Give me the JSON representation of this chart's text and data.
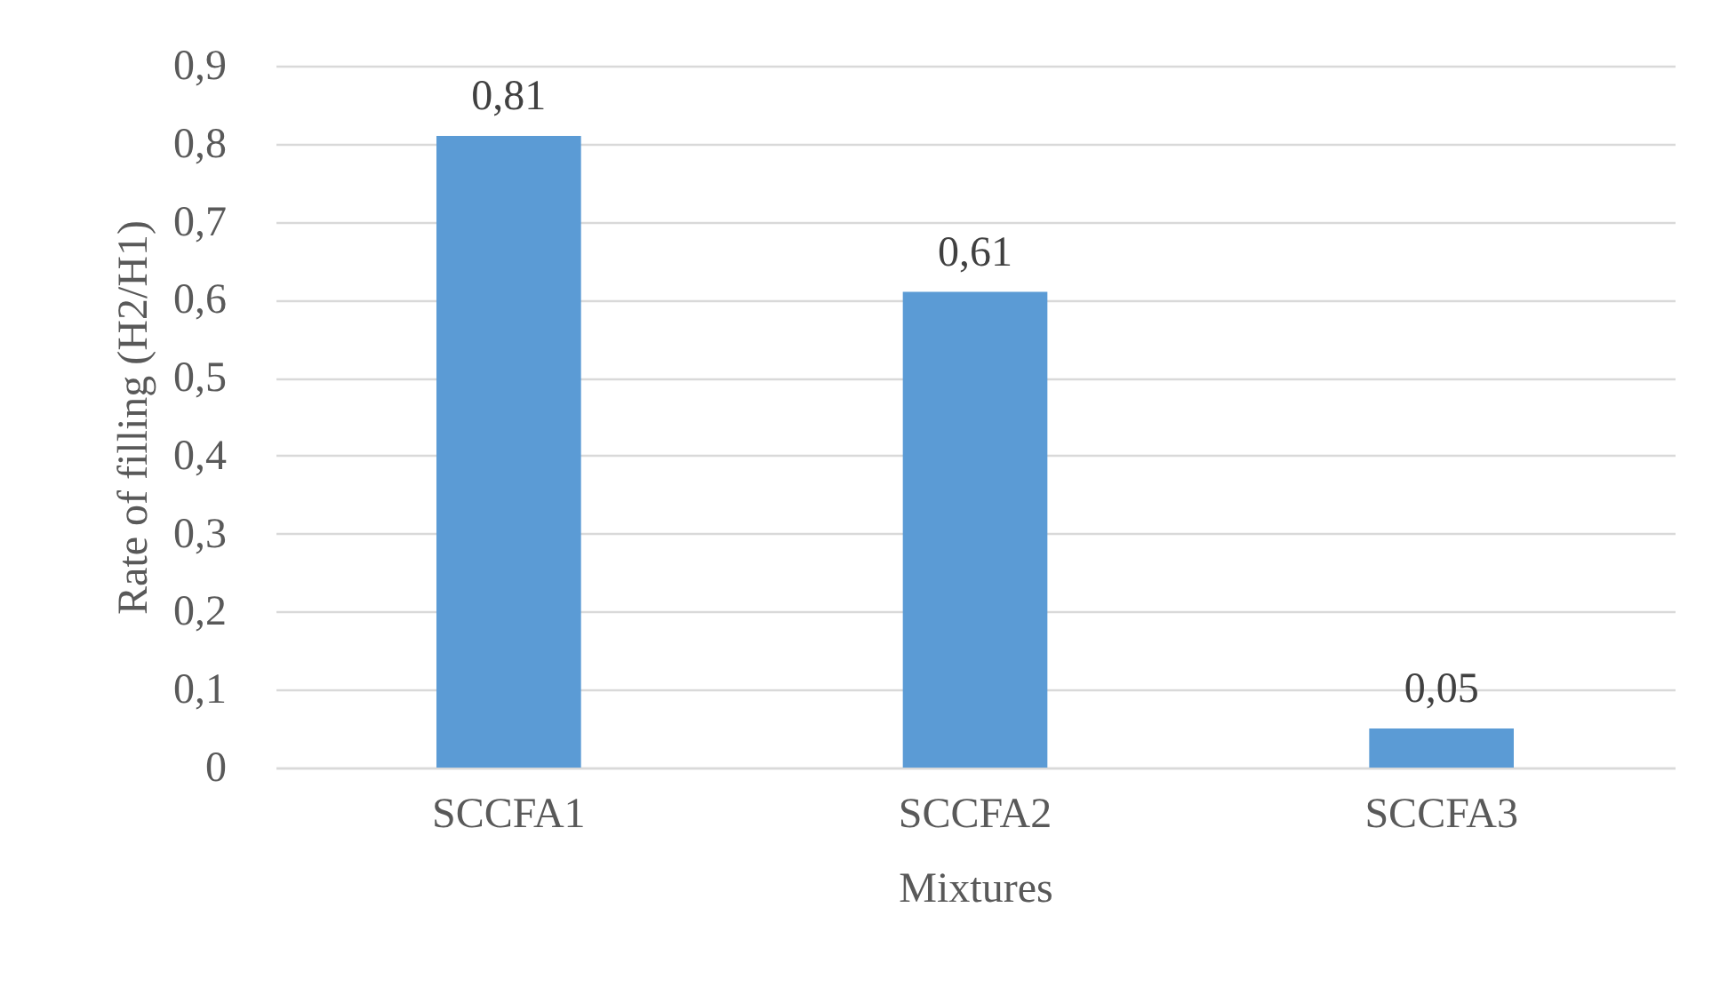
{
  "chart_data": {
    "type": "bar",
    "xlabel": "Mixtures",
    "ylabel": "Rate of filling (H2/H1)",
    "categories": [
      "SCCFA1",
      "SCCFA2",
      "SCCFA3"
    ],
    "values": [
      0.81,
      0.61,
      0.05
    ],
    "color": "#5b9bd5",
    "value_labels": [
      "0,81",
      "0,61",
      "0,05"
    ],
    "ylim": [
      0,
      0.9
    ],
    "yticks": [
      0,
      {
        "value": 0.1,
        "label": "0,1"
      },
      {
        "value": 0.2,
        "label": "0,2"
      },
      {
        "value": 0.3,
        "label": "0,3"
      },
      {
        "value": 0.4,
        "label": "0,4"
      },
      {
        "value": 0.5,
        "label": "0,5"
      },
      {
        "value": 0.6,
        "label": "0,6"
      },
      {
        "value": 0.7,
        "label": "0,7"
      },
      {
        "value": 0.8,
        "label": "0,8"
      },
      {
        "value": 0.9,
        "label": "0,9"
      }
    ],
    "grid": true
  }
}
